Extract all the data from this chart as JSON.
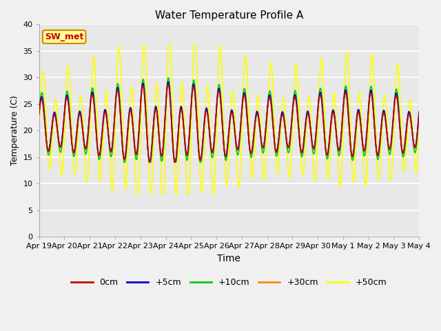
{
  "title": "Water Temperature Profile A",
  "xlabel": "Time",
  "ylabel": "Temperature (C)",
  "ylim": [
    0,
    40
  ],
  "yticks": [
    0,
    5,
    10,
    15,
    20,
    25,
    30,
    35,
    40
  ],
  "fig_bg_color": "#f0f0f0",
  "plot_bg_color": "#e8e8e8",
  "annotation_text": "SW_met",
  "annotation_bg": "#ffff99",
  "annotation_border": "#cc8800",
  "annotation_text_color": "#cc0000",
  "legend_entries": [
    "0cm",
    "+5cm",
    "+10cm",
    "+30cm",
    "+50cm"
  ],
  "line_colors": [
    "#cc0000",
    "#0000cc",
    "#00cc00",
    "#ff8800",
    "#ffff00"
  ],
  "tick_labels": [
    "Apr 19",
    "Apr 20",
    "Apr 21",
    "Apr 22",
    "Apr 23",
    "Apr 24",
    "Apr 25",
    "Apr 26",
    "Apr 27",
    "Apr 28",
    "Apr 29",
    "Apr 30",
    "May 1",
    "May 2",
    "May 3",
    "May 4"
  ],
  "figsize": [
    6.4,
    4.8
  ],
  "dpi": 100
}
